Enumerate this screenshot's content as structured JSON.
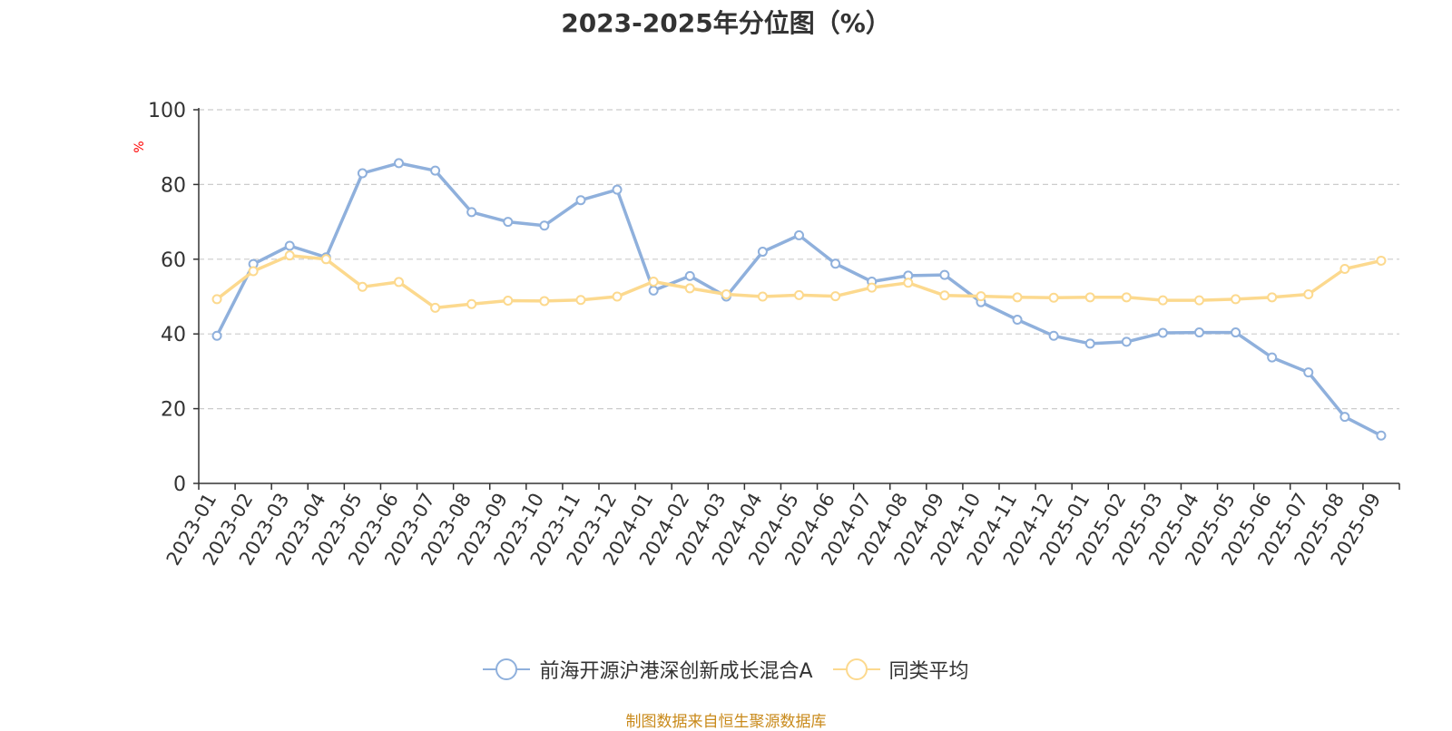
{
  "chart_data": {
    "type": "line",
    "title": "2023-2025年分位图（%）",
    "ylabel": "%",
    "ylim": [
      0,
      100
    ],
    "yticks": [
      0,
      20,
      40,
      60,
      80,
      100
    ],
    "grid": "horizontal dashed",
    "legend_position": "bottom-center",
    "categories": [
      "2023-01",
      "2023-02",
      "2023-03",
      "2023-04",
      "2023-05",
      "2023-06",
      "2023-07",
      "2023-08",
      "2023-09",
      "2023-10",
      "2023-11",
      "2023-12",
      "2024-01",
      "2024-02",
      "2024-03",
      "2024-04",
      "2024-05",
      "2024-06",
      "2024-07",
      "2024-08",
      "2024-09",
      "2024-10",
      "2024-11",
      "2024-12",
      "2025-01",
      "2025-02",
      "2025-03",
      "2025-04",
      "2025-05",
      "2025-06",
      "2025-07",
      "2025-08",
      "2025-09"
    ],
    "series": [
      {
        "name": "前海开源沪港深创新成长混合A",
        "color": "#8fb0dc",
        "values": [
          39.5,
          58.7,
          63.6,
          60.5,
          83.0,
          85.7,
          83.7,
          72.6,
          70.0,
          69.0,
          75.8,
          78.6,
          51.6,
          55.5,
          50.0,
          62.0,
          66.4,
          58.8,
          54.0,
          55.6,
          55.8,
          48.5,
          43.8,
          39.5,
          37.4,
          37.9,
          40.3,
          40.4,
          40.4,
          33.7,
          29.7,
          17.8,
          12.8
        ]
      },
      {
        "name": "同类平均",
        "color": "#fcd98e",
        "values": [
          49.3,
          56.8,
          61.0,
          60.0,
          52.6,
          53.9,
          47.0,
          48.0,
          48.9,
          48.8,
          49.1,
          50.0,
          54.0,
          52.2,
          50.6,
          50.0,
          50.4,
          50.1,
          52.4,
          53.7,
          50.3,
          50.1,
          49.8,
          49.7,
          49.8,
          49.8,
          49.0,
          49.0,
          49.3,
          49.8,
          50.6,
          57.4,
          59.6
        ]
      }
    ]
  },
  "source_note": "制图数据来自恒生聚源数据库",
  "colors": {
    "title": "#333333",
    "axis": "#333333",
    "grid": "#cccccc",
    "ylabel": "#ff0000",
    "source": "#c98a1b"
  }
}
